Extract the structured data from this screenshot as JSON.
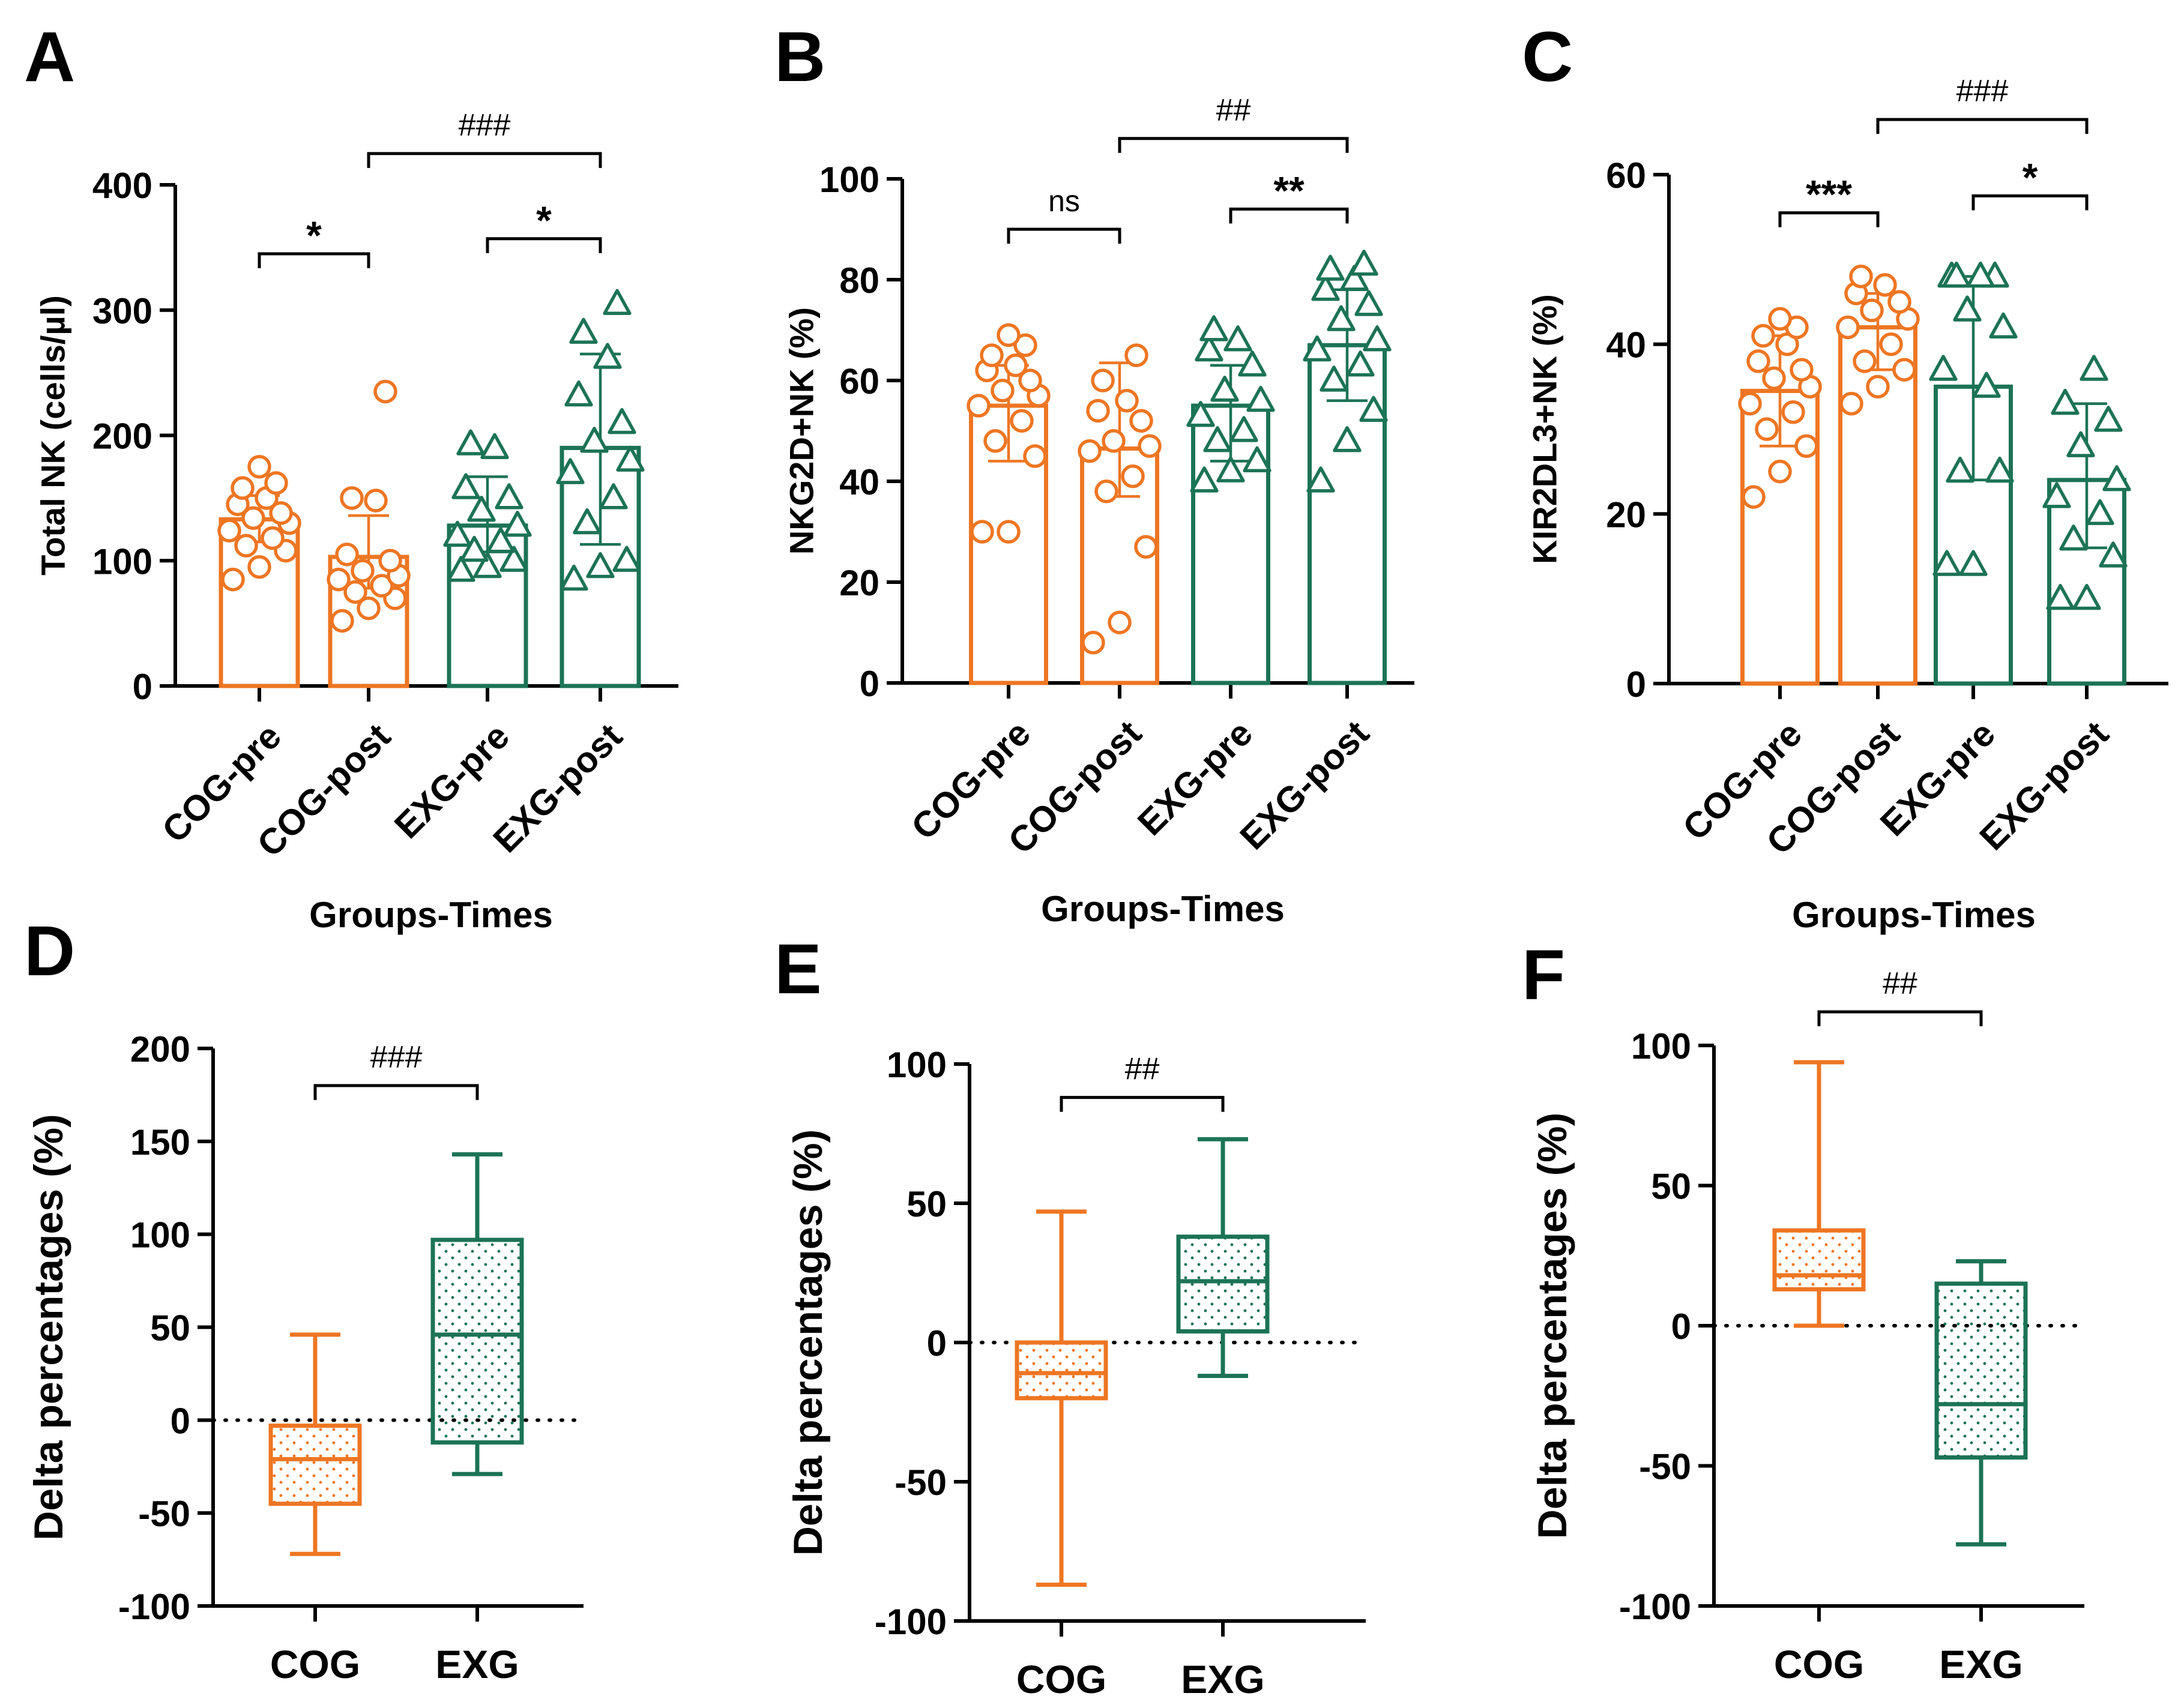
{
  "figure": {
    "colors": {
      "cog": "#EE7623",
      "exg": "#1C7355",
      "axis": "#000000"
    }
  },
  "chart_data": [
    {
      "id": "A",
      "type": "bar-scatter",
      "panel_label": "A",
      "title": "",
      "ylabel": "Total NK (cells/µl)",
      "xlabel": "Groups-Times",
      "ylim": [
        0,
        400
      ],
      "yticks": [
        0,
        100,
        200,
        300,
        400
      ],
      "categories": [
        "COG-pre",
        "COG-post",
        "EXG-pre",
        "EXG-post"
      ],
      "groups": [
        "cog",
        "cog",
        "exg",
        "exg"
      ],
      "markers": [
        "circle",
        "circle",
        "triangle",
        "triangle"
      ],
      "means": [
        133,
        103,
        128,
        190
      ],
      "sd": [
        [
          115,
          152
        ],
        [
          78,
          136
        ],
        [
          107,
          167
        ],
        [
          113,
          265
        ]
      ],
      "points": [
        [
          85,
          95,
          108,
          112,
          118,
          124,
          130,
          134,
          138,
          145,
          150,
          158,
          162,
          175
        ],
        [
          52,
          62,
          70,
          75,
          80,
          85,
          88,
          92,
          100,
          105,
          148,
          150,
          235
        ],
        [
          92,
          95,
          100,
          108,
          115,
          120,
          128,
          140,
          150,
          158,
          190,
          193
        ],
        [
          85,
          95,
          100,
          130,
          150,
          170,
          180,
          195,
          210,
          232,
          262,
          282,
          305
        ]
      ],
      "brackets": [
        {
          "from": 0,
          "to": 1,
          "y": 345,
          "label": "*"
        },
        {
          "from": 2,
          "to": 3,
          "y": 357,
          "label": "*"
        },
        {
          "from": 1,
          "to": 3,
          "y": 425,
          "label": "###"
        }
      ]
    },
    {
      "id": "B",
      "type": "bar-scatter",
      "panel_label": "B",
      "title": "",
      "ylabel": "NKG2D+NK (%)",
      "xlabel": "Groups-Times",
      "ylim": [
        0,
        100
      ],
      "yticks": [
        0,
        20,
        40,
        60,
        80,
        100
      ],
      "categories": [
        "COG-pre",
        "COG-post",
        "EXG-pre",
        "EXG-post"
      ],
      "groups": [
        "cog",
        "cog",
        "exg",
        "exg"
      ],
      "markers": [
        "circle",
        "circle",
        "triangle",
        "triangle"
      ],
      "means": [
        55,
        46.5,
        55,
        67
      ],
      "sd": [
        [
          44,
          63
        ],
        [
          37,
          63.5
        ],
        [
          44,
          63
        ],
        [
          56,
          78
        ]
      ],
      "points": [
        [
          30,
          30,
          45,
          48,
          52,
          55,
          57,
          58,
          60,
          62,
          63,
          65,
          67,
          69
        ],
        [
          8,
          12,
          27,
          38,
          41,
          46,
          47,
          48,
          52,
          54,
          56,
          60,
          65
        ],
        [
          40,
          42,
          44,
          48,
          50,
          53,
          56,
          58,
          63,
          66,
          68,
          70
        ],
        [
          40,
          48,
          54,
          60,
          63,
          66,
          68,
          72,
          75,
          78,
          80,
          82,
          83
        ]
      ],
      "brackets": [
        {
          "from": 0,
          "to": 1,
          "y": 90,
          "label": "ns"
        },
        {
          "from": 2,
          "to": 3,
          "y": 94,
          "label": "**"
        },
        {
          "from": 1,
          "to": 3,
          "y": 108,
          "label": "##"
        }
      ]
    },
    {
      "id": "C",
      "type": "bar-scatter",
      "panel_label": "C",
      "title": "",
      "ylabel": "KIR2DL3+NK (%)",
      "xlabel": "Groups-Times",
      "ylim": [
        0,
        60
      ],
      "yticks": [
        0,
        20,
        40,
        60
      ],
      "categories": [
        "COG-pre",
        "COG-post",
        "EXG-pre",
        "EXG-post"
      ],
      "groups": [
        "cog",
        "cog",
        "exg",
        "exg"
      ],
      "markers": [
        "circle",
        "circle",
        "triangle",
        "triangle"
      ],
      "means": [
        34.5,
        42,
        35,
        24
      ],
      "sd": [
        [
          28,
          41
        ],
        [
          37,
          46
        ],
        [
          24,
          48
        ],
        [
          16,
          33
        ]
      ],
      "points": [
        [
          22,
          25,
          28,
          30,
          32,
          33,
          35,
          36,
          37,
          38,
          40,
          41,
          42,
          43
        ],
        [
          33,
          35,
          37,
          38,
          40,
          42,
          43,
          44,
          45,
          46,
          47,
          48
        ],
        [
          14,
          14,
          25,
          25,
          35,
          37,
          42,
          44,
          48,
          48,
          48,
          48
        ],
        [
          10,
          10,
          15,
          17,
          20,
          22,
          24,
          28,
          31,
          33,
          37
        ]
      ],
      "brackets": [
        {
          "from": 0,
          "to": 1,
          "y": 55.5,
          "label": "***"
        },
        {
          "from": 2,
          "to": 3,
          "y": 57.5,
          "label": "*"
        },
        {
          "from": 1,
          "to": 3,
          "y": 66.5,
          "label": "###"
        }
      ]
    },
    {
      "id": "D",
      "type": "box",
      "panel_label": "D",
      "title": "",
      "ylabel": "Delta percentages (%)",
      "xlabel": "",
      "ylim": [
        -100,
        200
      ],
      "yticks": [
        -100,
        -50,
        0,
        50,
        100,
        150,
        200
      ],
      "categories": [
        "COG",
        "EXG"
      ],
      "groups": [
        "cog",
        "exg"
      ],
      "boxes": [
        {
          "min": -72,
          "q1": -45,
          "median": -21,
          "q3": -3,
          "max": 46
        },
        {
          "min": -29,
          "q1": -12,
          "median": 46,
          "q3": 97,
          "max": 143
        }
      ],
      "reference_line": 0,
      "brackets": [
        {
          "from": 0,
          "to": 1,
          "y": 180,
          "label": "###"
        }
      ]
    },
    {
      "id": "E",
      "type": "box",
      "panel_label": "E",
      "title": "",
      "ylabel": "Delta percentages (%)",
      "xlabel": "",
      "ylim": [
        -100,
        100
      ],
      "yticks": [
        -100,
        -50,
        0,
        50,
        100
      ],
      "categories": [
        "COG",
        "EXG"
      ],
      "groups": [
        "cog",
        "exg"
      ],
      "boxes": [
        {
          "min": -87,
          "q1": -20,
          "median": -11,
          "q3": 0,
          "max": 47
        },
        {
          "min": -12,
          "q1": 4,
          "median": 22,
          "q3": 38,
          "max": 73
        }
      ],
      "reference_line": 0,
      "brackets": [
        {
          "from": 0,
          "to": 1,
          "y": 88,
          "label": "##"
        }
      ]
    },
    {
      "id": "F",
      "type": "box",
      "panel_label": "F",
      "title": "",
      "ylabel": "Delta percentages (%)",
      "xlabel": "",
      "ylim": [
        -100,
        100
      ],
      "yticks": [
        -100,
        -50,
        0,
        50,
        100
      ],
      "categories": [
        "COG",
        "EXG"
      ],
      "groups": [
        "cog",
        "exg"
      ],
      "boxes": [
        {
          "min": 0,
          "q1": 13,
          "median": 18,
          "q3": 34,
          "max": 94
        },
        {
          "min": -78,
          "q1": -47,
          "median": -28,
          "q3": 15,
          "max": 23
        }
      ],
      "reference_line": 0,
      "brackets": [
        {
          "from": 0,
          "to": 1,
          "y": 112,
          "label": "##"
        }
      ]
    }
  ]
}
